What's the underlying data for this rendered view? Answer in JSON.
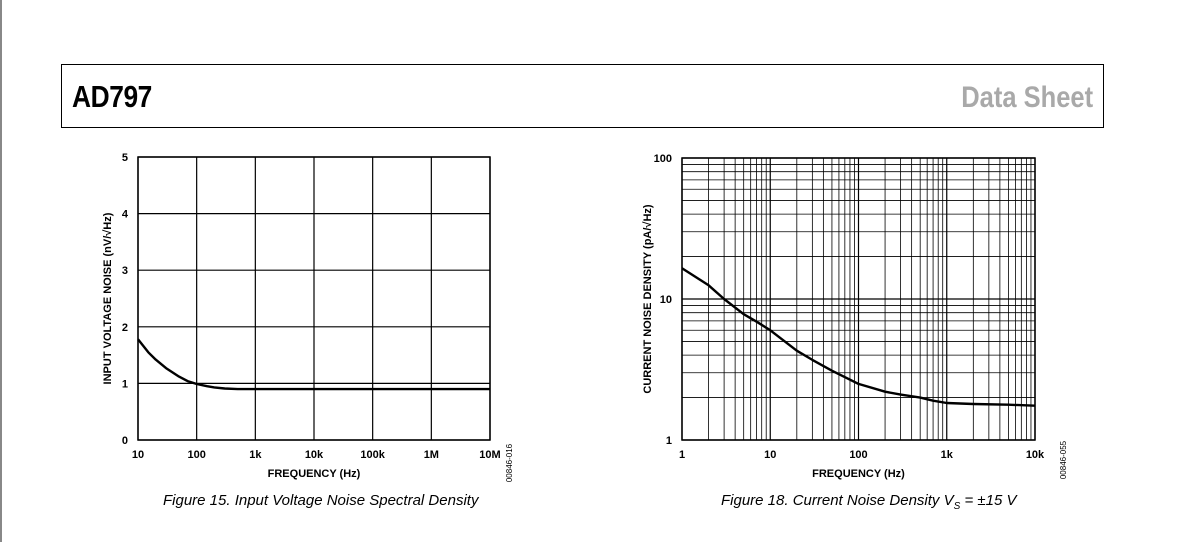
{
  "header": {
    "part_number": "AD797",
    "doc_type": "Data Sheet"
  },
  "chart_data": [
    {
      "type": "line",
      "xscale": "log",
      "xlim": [
        10,
        10000000
      ],
      "ylim": [
        0,
        5
      ],
      "xlabel": "FREQUENCY (Hz)",
      "ylabel": "INPUT VOLTAGE NOISE (nV/√Hz)",
      "x_ticks": [
        10,
        100,
        1000,
        10000,
        100000,
        1000000,
        10000000
      ],
      "x_tick_labels": [
        "10",
        "100",
        "1k",
        "10k",
        "100k",
        "1M",
        "10M"
      ],
      "y_ticks": [
        0,
        1,
        2,
        3,
        4,
        5
      ],
      "y_tick_labels": [
        "0",
        "1",
        "2",
        "3",
        "4",
        "5"
      ],
      "grid": true,
      "figure_id": "00846-016",
      "caption": "Figure 15. Input Voltage Noise Spectral Density",
      "series": [
        {
          "x": [
            10,
            15,
            20,
            30,
            50,
            70,
            100,
            150,
            200,
            300,
            500,
            1000,
            10000,
            100000,
            1000000,
            10000000
          ],
          "y": [
            1.78,
            1.55,
            1.42,
            1.27,
            1.12,
            1.04,
            0.99,
            0.95,
            0.93,
            0.91,
            0.9,
            0.9,
            0.9,
            0.9,
            0.9,
            0.9
          ]
        }
      ]
    },
    {
      "type": "line",
      "xscale": "log",
      "yscale": "log",
      "xlim": [
        1,
        10000
      ],
      "ylim": [
        1,
        100
      ],
      "xlabel": "FREQUENCY (Hz)",
      "ylabel": "CURRENT NOISE DENSITY (pA/√Hz)",
      "x_ticks": [
        1,
        10,
        100,
        1000,
        10000
      ],
      "x_tick_labels": [
        "1",
        "10",
        "100",
        "1k",
        "10k"
      ],
      "y_ticks": [
        1,
        10,
        100
      ],
      "y_tick_labels": [
        "1",
        "10",
        "100"
      ],
      "grid": true,
      "figure_id": "00846-055",
      "caption": "Figure 18. Current Noise Density V",
      "caption_subscript": "S",
      "caption_suffix": " = ±15 V",
      "series": [
        {
          "x": [
            1,
            2,
            3,
            5,
            7,
            10,
            20,
            30,
            50,
            100,
            200,
            300,
            500,
            700,
            1000,
            2000,
            5000,
            10000
          ],
          "y": [
            16.5,
            12.5,
            10,
            7.8,
            6.9,
            6.0,
            4.3,
            3.7,
            3.1,
            2.5,
            2.2,
            2.1,
            2.0,
            1.9,
            1.83,
            1.8,
            1.78,
            1.75
          ]
        }
      ]
    }
  ]
}
